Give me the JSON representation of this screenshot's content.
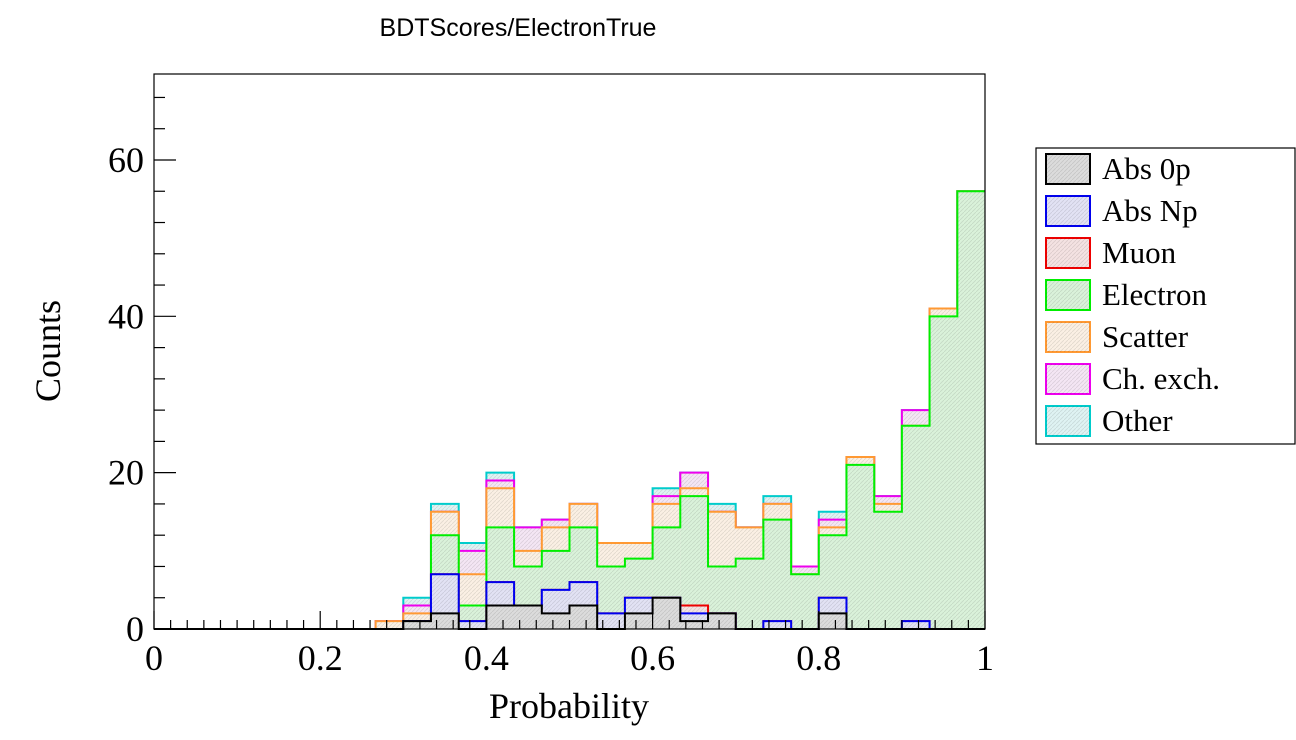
{
  "chart_data": {
    "type": "bar",
    "stacked_histogram": true,
    "title": "BDTScores/ElectronTrue",
    "xlabel": "Probability",
    "ylabel": "Counts",
    "xlim": [
      0,
      1
    ],
    "ylim": [
      0,
      71
    ],
    "x_ticks": [
      "0",
      "0.2",
      "0.4",
      "0.6",
      "0.8",
      "1"
    ],
    "y_ticks": [
      "0",
      "20",
      "40",
      "60"
    ],
    "grid": false,
    "legend_position": "right",
    "bin_edges": [
      0,
      0.0333,
      0.0667,
      0.1,
      0.1333,
      0.1667,
      0.2,
      0.2333,
      0.2667,
      0.3,
      0.3333,
      0.3667,
      0.4,
      0.4333,
      0.4667,
      0.5,
      0.5333,
      0.5667,
      0.6,
      0.6333,
      0.6667,
      0.7,
      0.7333,
      0.7667,
      0.8,
      0.8333,
      0.8667,
      0.9,
      0.9333,
      0.9667,
      1
    ],
    "series": [
      {
        "name": "Abs 0p",
        "color": "#000000",
        "fill": "#dcdcdc",
        "values": [
          0,
          0,
          0,
          0,
          0,
          0,
          0,
          0,
          0,
          1,
          2,
          0,
          3,
          3,
          2,
          3,
          0,
          2,
          4,
          1,
          2,
          0,
          0,
          0,
          2,
          0,
          0,
          0,
          0,
          0
        ]
      },
      {
        "name": "Abs Np",
        "color": "#0000ee",
        "fill": "#e2e2f4",
        "values": [
          0,
          0,
          0,
          0,
          0,
          0,
          0,
          0,
          0,
          0,
          5,
          1,
          3,
          0,
          3,
          3,
          2,
          2,
          0,
          1,
          0,
          0,
          1,
          0,
          2,
          0,
          0,
          1,
          0,
          0
        ]
      },
      {
        "name": "Muon",
        "color": "#ee0000",
        "fill": "#f4e2e2",
        "values": [
          0,
          0,
          0,
          0,
          0,
          0,
          0,
          0,
          0,
          0,
          0,
          0,
          0,
          0,
          0,
          0,
          0,
          0,
          0,
          1,
          0,
          0,
          0,
          0,
          0,
          0,
          0,
          0,
          0,
          0
        ]
      },
      {
        "name": "Electron",
        "color": "#00ee00",
        "fill": "#daf2da",
        "values": [
          0,
          0,
          0,
          0,
          0,
          0,
          0,
          0,
          0,
          0,
          5,
          2,
          7,
          5,
          5,
          7,
          6,
          5,
          9,
          14,
          6,
          9,
          13,
          7,
          8,
          21,
          15,
          25,
          40,
          56
        ]
      },
      {
        "name": "Scatter",
        "color": "#ff9933",
        "fill": "#fbf0e4",
        "values": [
          0,
          0,
          0,
          0,
          0,
          0,
          0,
          0,
          1,
          1,
          3,
          4,
          5,
          2,
          3,
          3,
          3,
          2,
          3,
          1,
          7,
          4,
          2,
          0,
          1,
          1,
          1,
          0,
          1,
          0
        ]
      },
      {
        "name": "Ch. exch.",
        "color": "#ee00ee",
        "fill": "#f4e6f4",
        "values": [
          0,
          0,
          0,
          0,
          0,
          0,
          0,
          0,
          0,
          1,
          0,
          3,
          1,
          3,
          1,
          0,
          0,
          0,
          1,
          2,
          0,
          0,
          0,
          1,
          1,
          0,
          1,
          2,
          0,
          0
        ]
      },
      {
        "name": "Other",
        "color": "#00cccc",
        "fill": "#dff3f3",
        "values": [
          0,
          0,
          0,
          0,
          0,
          0,
          0,
          0,
          0,
          1,
          1,
          1,
          1,
          0,
          0,
          0,
          0,
          0,
          1,
          0,
          1,
          0,
          1,
          0,
          1,
          0,
          0,
          0,
          0,
          0
        ]
      }
    ]
  }
}
